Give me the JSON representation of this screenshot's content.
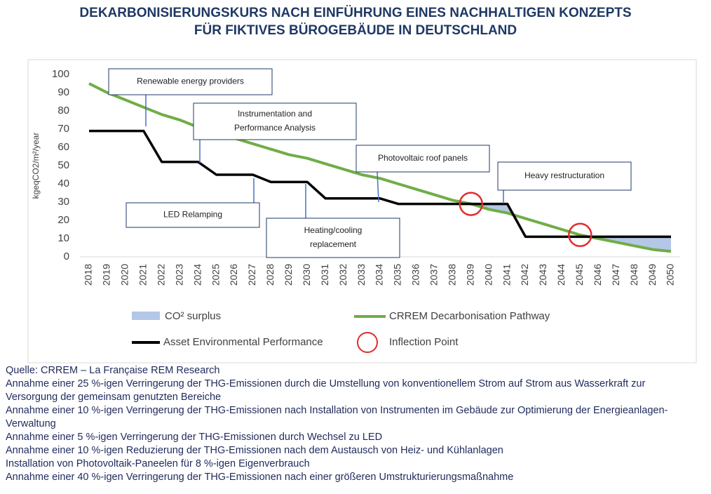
{
  "chart_data": {
    "type": "line",
    "title": [
      "DEKARBONISIERUNGSKURS NACH EINFÜHRUNG EINES NACHHALTIGEN KONZEPTS",
      "FÜR FIKTIVES BÜROGEBÄUDE IN DEUTSCHLAND"
    ],
    "y_label": "kgeqCO2/m²/year",
    "categories": [
      "2018",
      "2019",
      "2020",
      "2021",
      "2022",
      "2023",
      "2024",
      "2025",
      "2026",
      "2027",
      "2028",
      "2029",
      "2030",
      "2031",
      "2032",
      "2033",
      "2034",
      "2035",
      "2036",
      "2037",
      "2038",
      "2039",
      "2040",
      "2041",
      "2042",
      "2043",
      "2044",
      "2045",
      "2046",
      "2047",
      "2048",
      "2049",
      "2050"
    ],
    "series": [
      {
        "name": "CRREM Decarbonisation Pathway",
        "color": "#70ad47",
        "values": [
          95,
          90,
          86,
          82,
          78,
          75,
          71,
          68,
          65,
          62,
          59,
          56,
          54,
          51,
          48,
          45,
          43,
          40,
          37,
          34,
          31,
          29,
          26,
          24,
          21,
          18,
          15,
          12,
          10,
          8,
          6,
          4,
          3
        ]
      },
      {
        "name": "Asset Environmental Performance",
        "color": "#000000",
        "values": [
          69,
          69,
          69,
          69,
          52,
          52,
          52,
          45,
          45,
          45,
          41,
          41,
          41,
          32,
          32,
          32,
          32,
          29,
          29,
          29,
          29,
          29,
          29,
          29,
          11,
          11,
          11,
          11,
          11,
          11,
          11,
          11,
          11
        ]
      }
    ],
    "surplus": {
      "name": "CO² surplus",
      "color": "#b4c7e7"
    },
    "inflection": {
      "name": "Inflection Point",
      "color": "#e32b2b",
      "points": [
        {
          "x": "2039",
          "y": 29
        },
        {
          "x": "2045",
          "y": 12
        }
      ]
    },
    "ylim": [
      0,
      100
    ],
    "yticks": [
      0,
      10,
      20,
      30,
      40,
      50,
      60,
      70,
      80,
      90,
      100
    ],
    "annotations": [
      [
        "Renewable energy providers"
      ],
      [
        "Instrumentation and",
        "Performance Analysis"
      ],
      [
        "Photovoltaic roof panels"
      ],
      [
        "Heavy restructuration"
      ],
      [
        "LED Relamping"
      ],
      [
        "Heating/cooling",
        "replacement"
      ]
    ],
    "notes": [
      "Quelle: CRREM – La Française REM Research",
      "Annahme einer 25 %-igen Verringerung der THG-Emissionen durch die Umstellung von konventionellem Strom auf Strom aus Wasserkraft zur Versorgung der gemeinsam genutzten Bereiche",
      "Annahme einer 10 %-igen Verringerung der THG-Emissionen nach Installation von Instrumenten im Gebäude zur Optimierung der Energieanlagen-Verwaltung",
      "Annahme einer 5 %-igen Verringerung der THG-Emissionen durch Wechsel zu LED",
      "Annahme einer 10 %-igen Reduzierung der THG-Emissionen nach dem Austausch von Heiz- und Kühlanlagen",
      "Installation von Photovoltaik-Paneelen für 8 %-igen Eigenverbrauch",
      "Annahme einer 40 %-igen Verringerung der THG-Emissionen nach einer größeren Umstrukturierungsmaßnahme"
    ]
  }
}
